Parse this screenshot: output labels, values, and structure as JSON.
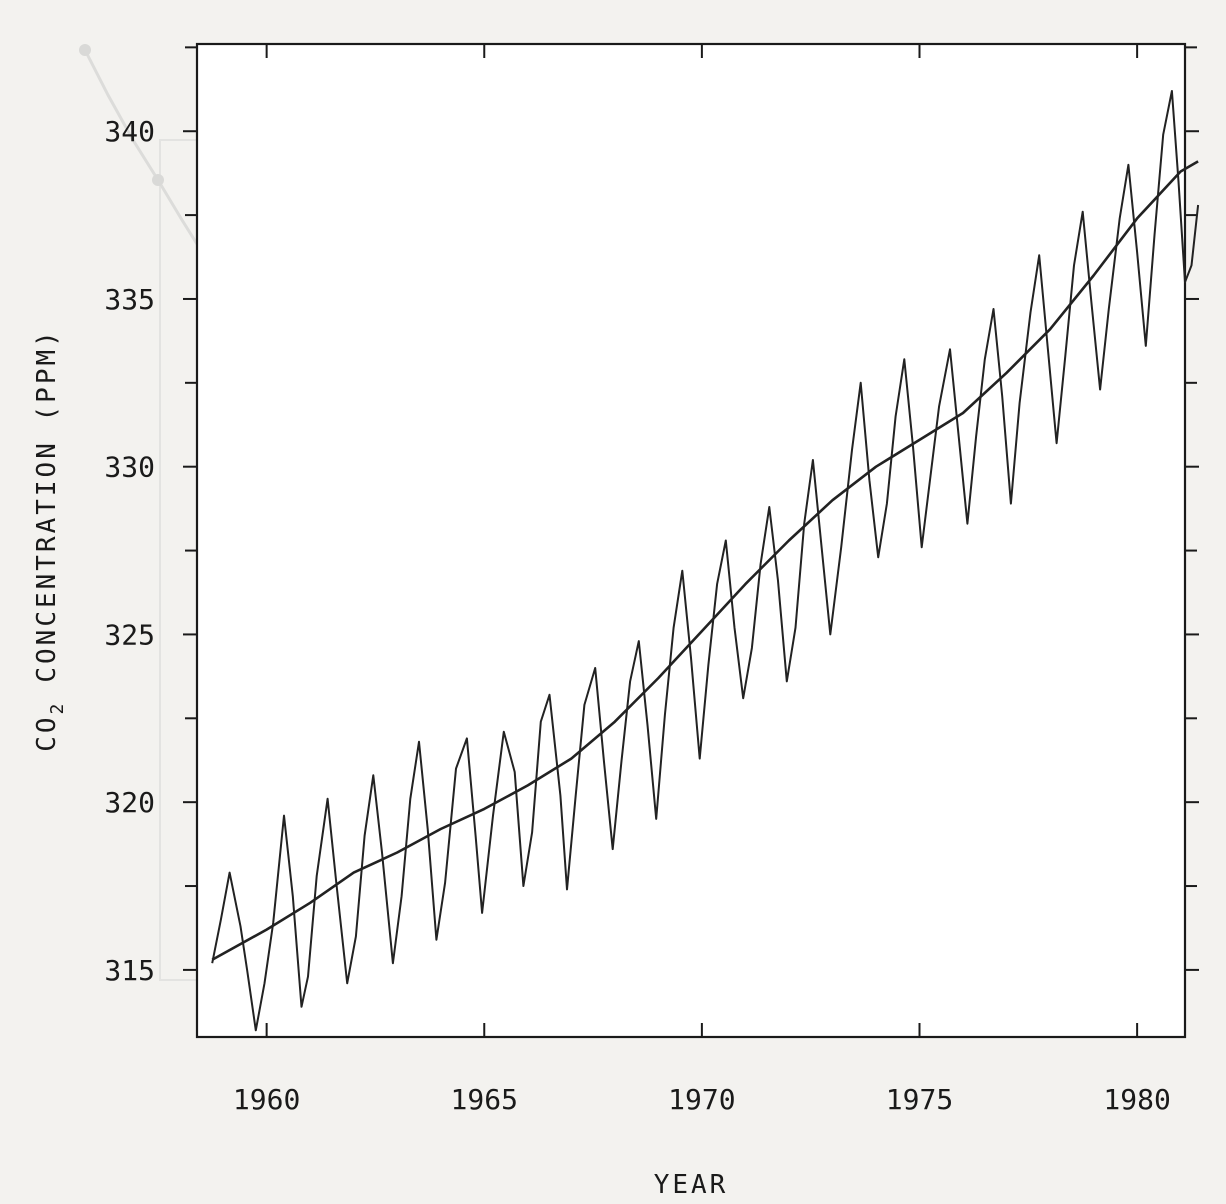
{
  "chart_data": {
    "type": "line",
    "title": "",
    "xlabel": "YEAR",
    "ylabel": "CO2 CONCENTRATION (PPM)",
    "ylabel_parts": {
      "main": "CO",
      "subscript": "2",
      "rest": "CONCENTRATION (PPM)"
    },
    "xlim": [
      1958.4,
      1981.1
    ],
    "ylim": [
      313.0,
      342.6
    ],
    "x_ticks": [
      1960,
      1965,
      1970,
      1975,
      1980
    ],
    "x_tick_labels": [
      "1960",
      "1965",
      "1970",
      "1975",
      "1980"
    ],
    "y_ticks": [
      315,
      320,
      325,
      330,
      335,
      340
    ],
    "y_tick_labels": [
      "315",
      "320",
      "325",
      "330",
      "335",
      "340"
    ],
    "grid": false,
    "series": [
      {
        "role": "monthly",
        "points": [
          [
            1958.75,
            315.2
          ],
          [
            1958.95,
            316.5
          ],
          [
            1959.15,
            317.9
          ],
          [
            1959.4,
            316.3
          ],
          [
            1959.55,
            315.0
          ],
          [
            1959.75,
            313.2
          ],
          [
            1959.95,
            314.6
          ],
          [
            1960.15,
            316.4
          ],
          [
            1960.4,
            319.6
          ],
          [
            1960.6,
            317.2
          ],
          [
            1960.8,
            313.9
          ],
          [
            1960.95,
            314.8
          ],
          [
            1961.15,
            317.8
          ],
          [
            1961.4,
            320.1
          ],
          [
            1961.6,
            317.6
          ],
          [
            1961.85,
            314.6
          ],
          [
            1962.05,
            316.0
          ],
          [
            1962.25,
            319.0
          ],
          [
            1962.45,
            320.8
          ],
          [
            1962.65,
            318.5
          ],
          [
            1962.9,
            315.2
          ],
          [
            1963.1,
            317.2
          ],
          [
            1963.3,
            320.1
          ],
          [
            1963.5,
            321.8
          ],
          [
            1963.7,
            319.2
          ],
          [
            1963.9,
            315.9
          ],
          [
            1964.1,
            317.6
          ],
          [
            1964.35,
            321.0
          ],
          [
            1964.6,
            321.9
          ],
          [
            1964.8,
            319.0
          ],
          [
            1964.95,
            316.7
          ],
          [
            1965.2,
            319.6
          ],
          [
            1965.45,
            322.1
          ],
          [
            1965.7,
            320.9
          ],
          [
            1965.9,
            317.5
          ],
          [
            1966.1,
            319.1
          ],
          [
            1966.3,
            322.4
          ],
          [
            1966.5,
            323.2
          ],
          [
            1966.75,
            320.2
          ],
          [
            1966.9,
            317.4
          ],
          [
            1967.1,
            320.2
          ],
          [
            1967.3,
            322.9
          ],
          [
            1967.55,
            324.0
          ],
          [
            1967.75,
            321.2
          ],
          [
            1967.95,
            318.6
          ],
          [
            1968.15,
            321.2
          ],
          [
            1968.35,
            323.6
          ],
          [
            1968.55,
            324.8
          ],
          [
            1968.75,
            322.3
          ],
          [
            1968.95,
            319.5
          ],
          [
            1969.15,
            322.6
          ],
          [
            1969.35,
            325.2
          ],
          [
            1969.55,
            326.9
          ],
          [
            1969.75,
            324.3
          ],
          [
            1969.95,
            321.3
          ],
          [
            1970.15,
            324.1
          ],
          [
            1970.35,
            326.5
          ],
          [
            1970.55,
            327.8
          ],
          [
            1970.75,
            325.2
          ],
          [
            1970.95,
            323.1
          ],
          [
            1971.15,
            324.6
          ],
          [
            1971.35,
            327.1
          ],
          [
            1971.55,
            328.8
          ],
          [
            1971.75,
            326.6
          ],
          [
            1971.95,
            323.6
          ],
          [
            1972.15,
            325.2
          ],
          [
            1972.35,
            328.3
          ],
          [
            1972.55,
            330.2
          ],
          [
            1972.75,
            327.6
          ],
          [
            1972.95,
            325.0
          ],
          [
            1973.2,
            327.6
          ],
          [
            1973.45,
            330.5
          ],
          [
            1973.65,
            332.5
          ],
          [
            1973.85,
            329.6
          ],
          [
            1974.05,
            327.3
          ],
          [
            1974.25,
            328.9
          ],
          [
            1974.45,
            331.5
          ],
          [
            1974.65,
            333.2
          ],
          [
            1974.85,
            330.6
          ],
          [
            1975.05,
            327.6
          ],
          [
            1975.25,
            329.7
          ],
          [
            1975.45,
            331.8
          ],
          [
            1975.7,
            333.5
          ],
          [
            1975.9,
            330.9
          ],
          [
            1976.1,
            328.3
          ],
          [
            1976.3,
            330.9
          ],
          [
            1976.5,
            333.2
          ],
          [
            1976.7,
            334.7
          ],
          [
            1976.9,
            332.1
          ],
          [
            1977.1,
            328.9
          ],
          [
            1977.3,
            331.9
          ],
          [
            1977.55,
            334.6
          ],
          [
            1977.75,
            336.3
          ],
          [
            1977.95,
            333.5
          ],
          [
            1978.15,
            330.7
          ],
          [
            1978.35,
            333.3
          ],
          [
            1978.55,
            336.0
          ],
          [
            1978.75,
            337.6
          ],
          [
            1978.95,
            334.9
          ],
          [
            1979.15,
            332.3
          ],
          [
            1979.35,
            334.7
          ],
          [
            1979.6,
            337.4
          ],
          [
            1979.8,
            339.0
          ],
          [
            1980.0,
            336.4
          ],
          [
            1980.2,
            333.6
          ],
          [
            1980.4,
            336.9
          ],
          [
            1980.6,
            339.9
          ],
          [
            1980.8,
            341.2
          ],
          [
            1980.95,
            338.5
          ],
          [
            1981.1,
            335.5
          ],
          [
            1981.25,
            336.0
          ],
          [
            1981.4,
            337.8
          ]
        ]
      },
      {
        "role": "trend",
        "points": [
          [
            1958.75,
            315.3
          ],
          [
            1960,
            316.2
          ],
          [
            1961,
            317.0
          ],
          [
            1962,
            317.9
          ],
          [
            1963,
            318.5
          ],
          [
            1964,
            319.2
          ],
          [
            1965,
            319.8
          ],
          [
            1966,
            320.5
          ],
          [
            1967,
            321.3
          ],
          [
            1968,
            322.4
          ],
          [
            1969,
            323.7
          ],
          [
            1970,
            325.1
          ],
          [
            1971,
            326.5
          ],
          [
            1972,
            327.8
          ],
          [
            1973,
            329.0
          ],
          [
            1974,
            330.0
          ],
          [
            1975,
            330.8
          ],
          [
            1976,
            331.6
          ],
          [
            1977,
            332.8
          ],
          [
            1978,
            334.1
          ],
          [
            1979,
            335.7
          ],
          [
            1980,
            337.4
          ],
          [
            1981,
            338.8
          ],
          [
            1981.4,
            339.1
          ]
        ]
      }
    ]
  }
}
